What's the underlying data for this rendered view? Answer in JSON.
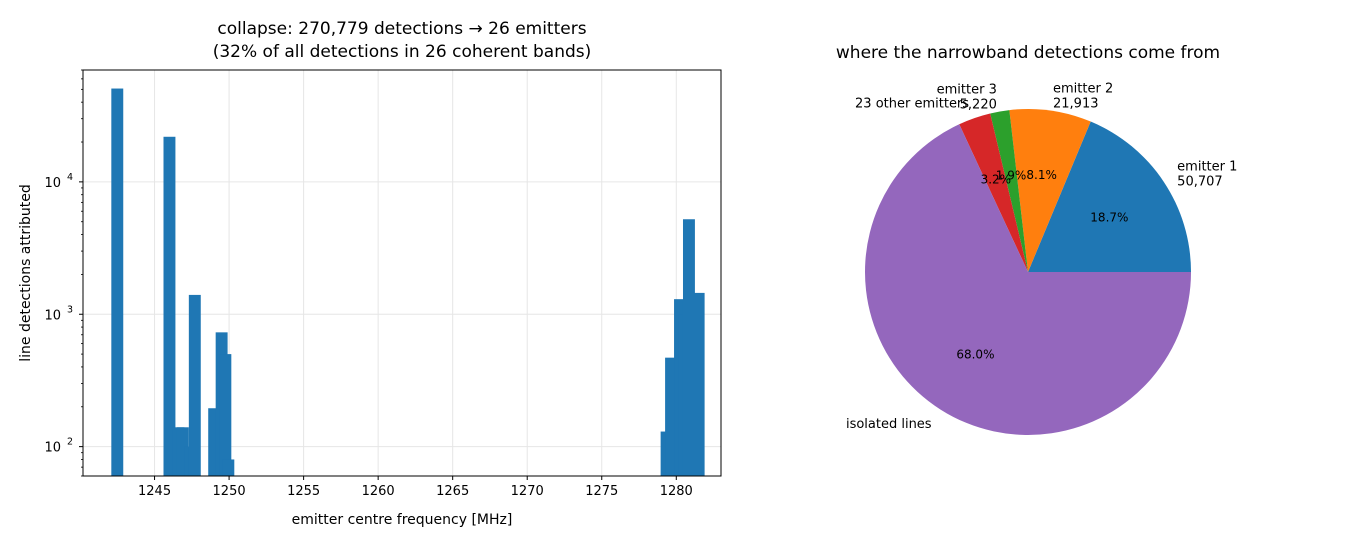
{
  "chart_data": [
    {
      "type": "bar",
      "title_line1": "collapse: 270,779 detections → 26 emitters",
      "title_line2": "(32% of all detections in 26 coherent bands)",
      "xlabel": "emitter centre frequency [MHz]",
      "ylabel": "line detections attributed",
      "yscale": "log",
      "xlim": [
        1240.2,
        1283.0
      ],
      "ylim": [
        60,
        70000
      ],
      "grid": true,
      "color": "#1f77b4",
      "bar_width": 0.8,
      "x_ticks": [
        1245,
        1250,
        1255,
        1260,
        1265,
        1270,
        1275,
        1280
      ],
      "x_tick_labels": [
        "1245",
        "1250",
        "1255",
        "1260",
        "1265",
        "1270",
        "1275",
        "1280"
      ],
      "y_ticks": [
        100,
        1000,
        10000
      ],
      "y_tick_labels": [
        "10",
        "10",
        "10"
      ],
      "y_tick_exponents": [
        "2",
        "3",
        "4"
      ],
      "bars": [
        {
          "x": 1242.5,
          "value": 50707
        },
        {
          "x": 1246.0,
          "value": 21913
        },
        {
          "x": 1246.6,
          "value": 140
        },
        {
          "x": 1246.9,
          "value": 140
        },
        {
          "x": 1247.4,
          "value": 100
        },
        {
          "x": 1247.7,
          "value": 1400
        },
        {
          "x": 1249.0,
          "value": 195
        },
        {
          "x": 1249.5,
          "value": 730
        },
        {
          "x": 1249.75,
          "value": 500
        },
        {
          "x": 1249.95,
          "value": 80
        },
        {
          "x": 1279.35,
          "value": 130
        },
        {
          "x": 1279.65,
          "value": 470
        },
        {
          "x": 1280.25,
          "value": 1300
        },
        {
          "x": 1280.55,
          "value": 1000
        },
        {
          "x": 1280.85,
          "value": 5220
        },
        {
          "x": 1281.5,
          "value": 1450
        }
      ]
    },
    {
      "type": "pie",
      "title": "where the narrowband detections come from",
      "slices": [
        {
          "name": "emitter 1",
          "count_label": "50,707",
          "value": 18.7,
          "pct_label": "18.7%",
          "color": "#1f77b4"
        },
        {
          "name": "emitter 2",
          "count_label": "21,913",
          "value": 8.1,
          "pct_label": "8.1%",
          "color": "#ff7f0e"
        },
        {
          "name": "emitter 3",
          "count_label": "5,220",
          "value": 1.9,
          "pct_label": "1.9%",
          "color": "#2ca02c"
        },
        {
          "name": "23 other emitters",
          "count_label": "",
          "value": 3.2,
          "pct_label": "3.2%",
          "color": "#d62728"
        },
        {
          "name": "isolated lines",
          "count_label": "",
          "value": 68.0,
          "pct_label": "68.0%",
          "color": "#9467bd"
        }
      ]
    }
  ]
}
